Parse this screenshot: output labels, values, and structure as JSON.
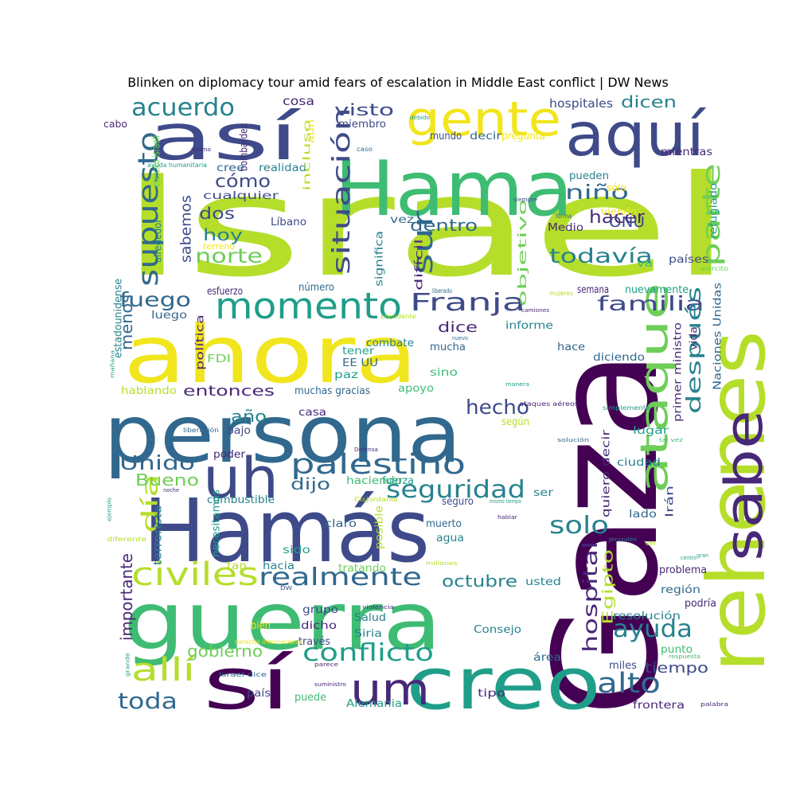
{
  "title": "Blinken on diplomacy tour amid fears of escalation in Middle East conflict | DW News",
  "colors": {
    "yellow": "#f1e51d",
    "yellow_green": "#b5de2b",
    "green": "#6ece58",
    "mid_green": "#3fbc73",
    "teal": "#1f9e89",
    "blue_teal": "#26828e",
    "blue": "#31688e",
    "indigo": "#3e4a89",
    "purple": "#482878",
    "dark_purple": "#440154"
  },
  "words": [
    "Israel",
    "Gaza",
    "Hama",
    "ahora",
    "persona",
    "Hamás",
    "guerra",
    "rehenes",
    "sabe",
    "así",
    "aquí",
    "gente",
    "sí",
    "creo",
    "momento",
    "ataque",
    "uh",
    "um",
    "palestino",
    "civiles",
    "realmente",
    "conflicto",
    "allí",
    "supuesto",
    "situación",
    "Franja",
    "acuerdo",
    "sur",
    "parte",
    "seguridad",
    "Unido",
    "día",
    "hospital",
    "ayuda",
    "alto",
    "solo",
    "familia",
    "después",
    "fuego",
    "todavía",
    "norte",
    "cómo",
    "niño",
    "hacer",
    "dos",
    "hoy",
    "hecho",
    "sabemos",
    "dentro",
    "visto",
    "dicen",
    "hospitales",
    "ONU",
    "entonces",
    "año",
    "Bueno",
    "dijo",
    "gobierno",
    "octubre",
    "toda",
    "tiempo",
    "importante",
    "menos",
    "Egipto",
    "dice",
    "cosa",
    "mundo",
    "decir",
    "pregunta",
    "pueden",
    "mientras",
    "miembro",
    "bombardeo",
    "realidad",
    "cree",
    "cualquier",
    "Líbano",
    "vez",
    "Medio",
    "objetivo",
    "difícil",
    "significa",
    "refugiado",
    "va",
    "países",
    "número",
    "esfuerzo",
    "semana",
    "nuevamente",
    "luego",
    "informe",
    "vida",
    "combate",
    "mucha",
    "tener",
    "EE UU",
    "paz",
    "sino",
    "hace",
    "diciendo",
    "FDI",
    "política",
    "hablando",
    "muchas gracias",
    "apoyo",
    "casa",
    "bajo",
    "según",
    "lugar",
    "ciudad",
    "poder",
    "haciendo",
    "fuerza",
    "combustible",
    "seguro",
    "ser",
    "lado",
    "claro",
    "muerto",
    "agua",
    "posible",
    "sido",
    "tan",
    "hacia",
    "tratando",
    "usted",
    "problema",
    "región",
    "podría",
    "resolución",
    "grupo",
    "dicho",
    "Salud",
    "Siria",
    "Consejo",
    "través",
    "bien",
    "puede",
    "Alemania",
    "punto",
    "área",
    "miles",
    "frontera",
    "tipo",
    "país",
    "primer ministro",
    "Naciones Unidas",
    "quiero decir",
    "Irán",
    "terrorista",
    "necesitamos",
    "estadounidense",
    "alrededor",
    "ejército israelí",
    "aún",
    "incluso",
    "cabo",
    "mismo",
    "ayuda humanitaria",
    "caso",
    "siempre",
    "sólo",
    "viendo",
    "forma",
    "terreno",
    "ejército",
    "liberado",
    "mujeres",
    "camiones",
    "presidente",
    "nuevo",
    "manera",
    "ataques aéreos",
    "simplemente",
    "liberación",
    "solución",
    "tal vez",
    "Defensa",
    "Cisjordania",
    "mismo tiempo",
    "noche",
    "hablar",
    "Jerusalén",
    "ver",
    "centro",
    "gran",
    "millones",
    "DW",
    "violencia",
    "derecho internacional",
    "Israel dice",
    "parece",
    "suministro",
    "respuesta",
    "palabra",
    "grande",
    "diferente",
    "ejemplo",
    "mañana",
    "debido"
  ]
}
